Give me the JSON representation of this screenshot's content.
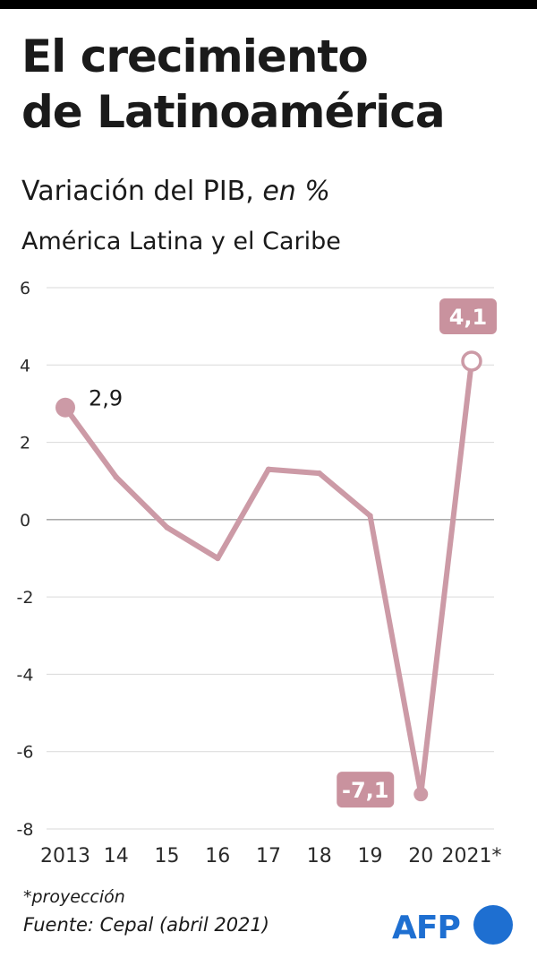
{
  "header": {
    "title_line1": "El crecimiento",
    "title_line2": "de Latinoamérica",
    "subtitle_main": "Variación del PIB,",
    "subtitle_unit": "en %",
    "region": "América Latina y el Caribe"
  },
  "chart_data": {
    "type": "line",
    "title": "El crecimiento de Latinoamérica",
    "subtitle": "Variación del PIB, en %",
    "categories": [
      "2013",
      "14",
      "15",
      "16",
      "17",
      "18",
      "19",
      "20",
      "2021*"
    ],
    "series": [
      {
        "name": "América Latina y el Caribe",
        "values": [
          2.9,
          1.1,
          -0.2,
          -1.0,
          1.3,
          1.2,
          0.1,
          -7.1,
          4.1
        ],
        "color": "#cc9aa6"
      }
    ],
    "ylim": [
      -8,
      6
    ],
    "yticks": [
      "6",
      "4",
      "2",
      "0",
      "-2",
      "-4",
      "-6",
      "-8"
    ],
    "grid": true,
    "annotations": [
      {
        "category": "2013",
        "value": 2.9,
        "label": "2,9",
        "style": "plain"
      },
      {
        "category": "20",
        "value": -7.1,
        "label": "-7,1",
        "style": "boxed"
      },
      {
        "category": "2021*",
        "value": 4.1,
        "label": "4,1",
        "style": "boxed",
        "marker": "hollow"
      }
    ],
    "colors": {
      "line": "#cc9aa6",
      "label_box": "#c9929e",
      "grid": "#d9d9d9",
      "zero_line": "#9e9e9e"
    }
  },
  "footer": {
    "footnote": "*proyección",
    "source": "Fuente: Cepal (abril 2021)",
    "logo_text": "AFP",
    "logo_color": "#1e6fd1"
  }
}
